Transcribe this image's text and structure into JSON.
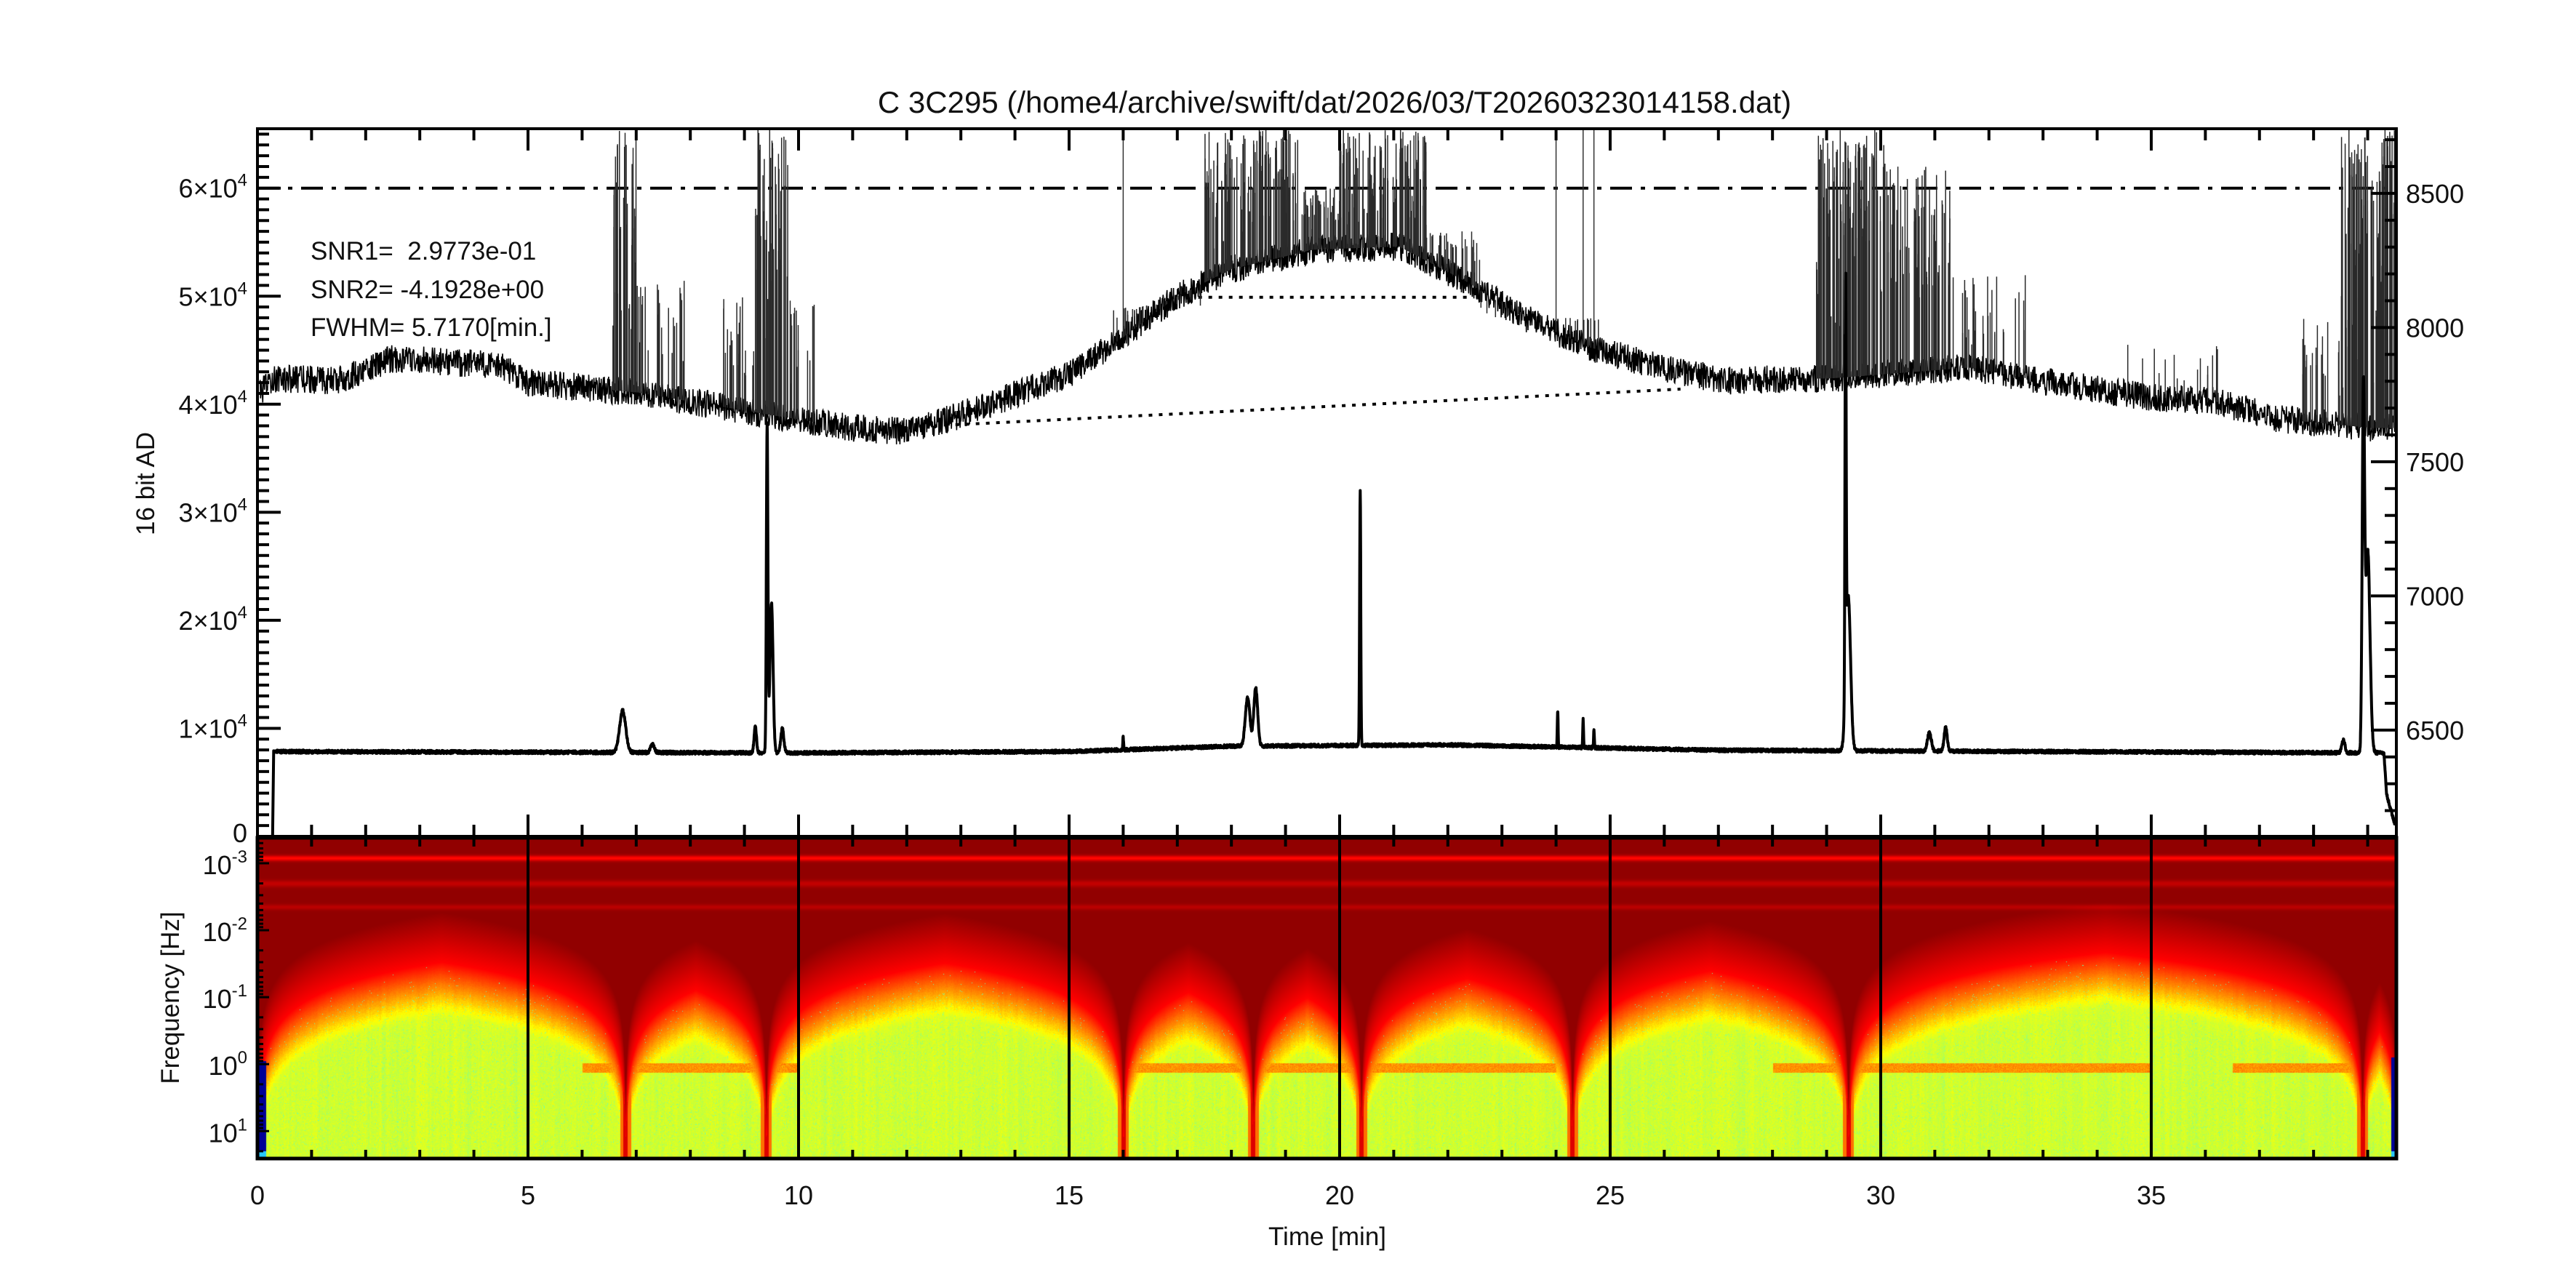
{
  "title": "C 3C295     (/home4/archive/swift/dat/2026/03/T20260323014158.dat)",
  "chart_data": [
    {
      "type": "line",
      "ylabel": "16 bit AD",
      "xlim": [
        0,
        39.53
      ],
      "ylim_left": [
        0,
        65500
      ],
      "ylim_right": [
        6104,
        8741
      ],
      "ytick_labels_left": [
        {
          "value": 0,
          "base": "0",
          "exp": ""
        },
        {
          "value": 10000,
          "base": "1×10",
          "exp": "4"
        },
        {
          "value": 20000,
          "base": "2×10",
          "exp": "4"
        },
        {
          "value": 30000,
          "base": "3×10",
          "exp": "4"
        },
        {
          "value": 40000,
          "base": "4×10",
          "exp": "4"
        },
        {
          "value": 50000,
          "base": "5×10",
          "exp": "4"
        },
        {
          "value": 60000,
          "base": "6×10",
          "exp": "4"
        }
      ],
      "ytick_labels_right": [
        {
          "value": 6500,
          "label": "6500"
        },
        {
          "value": 7000,
          "label": "7000"
        },
        {
          "value": 7500,
          "label": "7500"
        },
        {
          "value": 8000,
          "label": "8000"
        },
        {
          "value": 8500,
          "label": "8500"
        }
      ],
      "annotations": [
        "SNR1=  2.9773e-01",
        "SNR2= -4.1928e+00",
        "FWHM= 5.7170[min.]"
      ],
      "reference_lines": [
        {
          "style": "dash-dot",
          "x": [
            0,
            39.53
          ],
          "y": [
            60000,
            60000
          ]
        },
        {
          "style": "dotted",
          "x": [
            17.2,
            22.4
          ],
          "y": [
            49900,
            49900
          ]
        },
        {
          "style": "dotted",
          "x": [
            12.9,
            26.3
          ],
          "y": [
            38100,
            41400
          ]
        }
      ],
      "series": [
        {
          "axis": "left",
          "x": [
            0.05,
            0.3,
            1.5,
            2.5,
            3.2,
            4.5,
            5.0,
            7.0,
            9.5,
            11.0,
            12.0,
            13.0,
            15.0,
            16.0,
            17.0,
            18.0,
            19.5,
            21.1,
            22.4,
            23.3,
            24.6,
            26.1,
            27.15,
            29.1,
            31.65,
            32.9,
            34.9,
            36.15,
            37.4,
            39.1,
            39.5
          ],
          "y": [
            41000,
            42400,
            42200,
            44200,
            44000,
            43600,
            42000,
            41100,
            39000,
            37800,
            37500,
            39000,
            42800,
            46200,
            50000,
            52500,
            54300,
            54600,
            51200,
            48300,
            45300,
            43200,
            42200,
            42400,
            43400,
            42200,
            40700,
            40300,
            38600,
            37800,
            37800
          ],
          "bursts": [
            {
              "t_start": 6.55,
              "t_end": 7.0,
              "count": 40,
              "max": 65500
            },
            {
              "t_start": 7.0,
              "t_end": 7.9,
              "count": 25,
              "max": 52000
            },
            {
              "t_start": 8.6,
              "t_end": 9.2,
              "count": 20,
              "max": 50000
            },
            {
              "t_start": 9.2,
              "t_end": 9.8,
              "count": 60,
              "max": 65500
            },
            {
              "t_start": 9.8,
              "t_end": 10.3,
              "count": 15,
              "max": 50000
            },
            {
              "t_start": 15.8,
              "t_end": 17.5,
              "count": 30,
              "max": 49000
            },
            {
              "t_start": 17.5,
              "t_end": 19.3,
              "count": 120,
              "max": 65500
            },
            {
              "t_start": 19.3,
              "t_end": 20.0,
              "count": 40,
              "max": 60000
            },
            {
              "t_start": 20.0,
              "t_end": 21.6,
              "count": 120,
              "max": 65500
            },
            {
              "t_start": 21.6,
              "t_end": 22.6,
              "count": 30,
              "max": 56000
            },
            {
              "t_start": 22.6,
              "t_end": 25.0,
              "count": 20,
              "max": 48000
            },
            {
              "t_start": 28.8,
              "t_end": 30.1,
              "count": 120,
              "max": 65500
            },
            {
              "t_start": 30.1,
              "t_end": 31.4,
              "count": 80,
              "max": 62000
            },
            {
              "t_start": 31.4,
              "t_end": 32.7,
              "count": 30,
              "max": 52000
            },
            {
              "t_start": 34.5,
              "t_end": 36.3,
              "count": 15,
              "max": 46000
            },
            {
              "t_start": 37.8,
              "t_end": 38.5,
              "count": 20,
              "max": 48000
            },
            {
              "t_start": 38.5,
              "t_end": 39.5,
              "count": 120,
              "max": 65500
            }
          ],
          "spikes": [
            16.0,
            24.0,
            24.5,
            24.7
          ]
        },
        {
          "axis": "right",
          "x": [
            0.28,
            0.3,
            10,
            15,
            18,
            22,
            27,
            33,
            39.3,
            39.35,
            39.5
          ],
          "y": [
            6104,
            6420,
            6415,
            6420,
            6440,
            6445,
            6425,
            6420,
            6415,
            6260,
            6150
          ],
          "peaks": [
            {
              "t": 6.75,
              "value": 6576,
              "width": 0.08
            },
            {
              "t": 7.3,
              "value": 6450,
              "width": 0.05
            },
            {
              "t": 9.2,
              "value": 6520,
              "width": 0.03
            },
            {
              "t": 9.42,
              "value": 7641,
              "width": 0.02
            },
            {
              "t": 9.5,
              "value": 6980,
              "width": 0.04
            },
            {
              "t": 9.7,
              "value": 6510,
              "width": 0.04
            },
            {
              "t": 16.0,
              "value": 6470,
              "width": 0.01
            },
            {
              "t": 18.3,
              "value": 6600,
              "width": 0.06
            },
            {
              "t": 18.45,
              "value": 6635,
              "width": 0.05
            },
            {
              "t": 20.38,
              "value": 7370,
              "width": 0.015
            },
            {
              "t": 24.03,
              "value": 6562,
              "width": 0.01
            },
            {
              "t": 24.5,
              "value": 6527,
              "width": 0.01
            },
            {
              "t": 24.7,
              "value": 6490,
              "width": 0.01
            },
            {
              "t": 29.35,
              "value": 7920,
              "width": 0.015
            },
            {
              "t": 29.4,
              "value": 6996,
              "width": 0.06
            },
            {
              "t": 30.9,
              "value": 6490,
              "width": 0.05
            },
            {
              "t": 31.2,
              "value": 6510,
              "width": 0.04
            },
            {
              "t": 38.55,
              "value": 6470,
              "width": 0.04
            },
            {
              "t": 38.92,
              "value": 7692,
              "width": 0.03
            },
            {
              "t": 39.0,
              "value": 7175,
              "width": 0.06
            }
          ]
        }
      ]
    },
    {
      "type": "heatmap",
      "xlabel": "Time [min]",
      "ylabel": "Frequency [Hz]",
      "xlim": [
        0,
        39.53
      ],
      "ylim_log10": [
        -3.38,
        1.41
      ],
      "y_scale": "log",
      "colormap": "jet (dark red = high power, yellow/green = low)",
      "xtick_labels": [
        {
          "value": 0,
          "label": "0"
        },
        {
          "value": 5,
          "label": "5"
        },
        {
          "value": 10,
          "label": "10"
        },
        {
          "value": 15,
          "label": "15"
        },
        {
          "value": 20,
          "label": "20"
        },
        {
          "value": 25,
          "label": "25"
        },
        {
          "value": 30,
          "label": "30"
        },
        {
          "value": 35,
          "label": "35"
        }
      ],
      "ytick_labels": [
        {
          "log10": -3,
          "base": "10",
          "exp": "-3"
        },
        {
          "log10": -2,
          "base": "10",
          "exp": "-2"
        },
        {
          "log10": -1,
          "base": "10",
          "exp": "-1"
        },
        {
          "log10": 0,
          "base": "10",
          "exp": "0"
        },
        {
          "log10": 1,
          "base": "10",
          "exp": "1"
        }
      ],
      "vertical_lines": [
        5,
        10,
        15,
        20,
        25,
        30,
        35
      ],
      "events": [
        0,
        6.8,
        9.4,
        16.0,
        18.4,
        20.4,
        24.3,
        29.4,
        38.9,
        39.53
      ]
    }
  ]
}
